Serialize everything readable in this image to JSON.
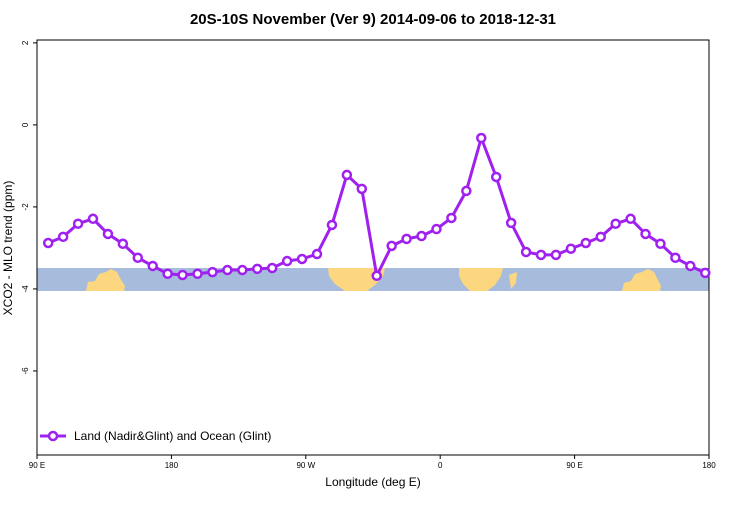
{
  "chart_data": {
    "type": "line",
    "title": "20S-10S November (Ver 9)   2014-09-06 to 2018-12-31",
    "x_label": "Longitude (deg E)",
    "y_label": "XCO2 - MLO trend (ppm)",
    "xlim": [
      90,
      540
    ],
    "xticks": [
      {
        "value": 90,
        "label": "90 E"
      },
      {
        "value": 180,
        "label": "180"
      },
      {
        "value": 270,
        "label": "90 W"
      },
      {
        "value": 360,
        "label": "0"
      },
      {
        "value": 450,
        "label": "90 E"
      },
      {
        "value": 540,
        "label": "180"
      }
    ],
    "ylim": [
      -8.05,
      2.07
    ],
    "yticks": [
      2,
      0,
      -2,
      -4,
      -6
    ],
    "legend": "bottom-left",
    "x": [
      97.5,
      107.5,
      117.5,
      127.5,
      137.5,
      147.5,
      157.5,
      167.5,
      177.5,
      187.5,
      197.5,
      207.5,
      217.5,
      227.5,
      237.5,
      247.5,
      257.5,
      267.5,
      277.5,
      287.5,
      297.5,
      307.5,
      317.5,
      327.5,
      337.5,
      347.5,
      357.5,
      367.5,
      377.5,
      387.5,
      397.5,
      407.5,
      417.5,
      427.5,
      437.5,
      447.5,
      457.5,
      467.5,
      477.5,
      487.5,
      497.5,
      507.5,
      517.5,
      527.5,
      537.5
    ],
    "series": [
      {
        "name": "Land (Nadir&Glint) and Ocean (Glint)",
        "color": "#a020f0",
        "values": [
          -2.88,
          -2.73,
          -2.41,
          -2.29,
          -2.66,
          -2.9,
          -3.24,
          -3.44,
          -3.63,
          -3.66,
          -3.63,
          -3.59,
          -3.54,
          -3.54,
          -3.51,
          -3.49,
          -3.32,
          -3.27,
          -3.15,
          -2.44,
          -1.22,
          -1.56,
          -3.68,
          -2.95,
          -2.78,
          -2.71,
          -2.54,
          -2.27,
          -1.61,
          -0.32,
          -1.27,
          -2.39,
          -3.1,
          -3.17,
          -3.17,
          -3.02,
          -2.88,
          -2.73,
          -2.41,
          -2.29,
          -2.66,
          -2.9,
          -3.24,
          -3.44,
          -3.61
        ]
      }
    ]
  }
}
